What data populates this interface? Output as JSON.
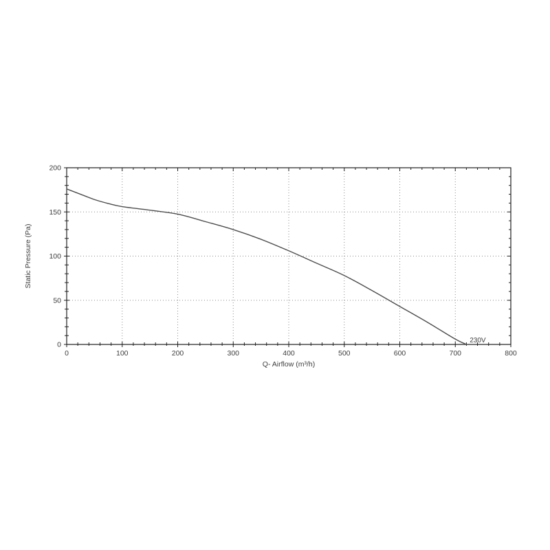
{
  "chart_data": {
    "type": "line",
    "title": "",
    "xlabel": "Q- Airflow (m³/h)",
    "ylabel": "Static Pressure (Pa)",
    "xlim": [
      0,
      800
    ],
    "ylim": [
      0,
      200
    ],
    "x_major_ticks": [
      0,
      100,
      200,
      300,
      400,
      500,
      600,
      700,
      800
    ],
    "y_major_ticks": [
      0,
      50,
      100,
      150,
      200
    ],
    "x_minor_step": 20,
    "y_minor_step": 10,
    "grid": "dotted-on-major-lines",
    "legend_position": "none",
    "series": [
      {
        "name": "230V",
        "points": [
          [
            0,
            176
          ],
          [
            25,
            170
          ],
          [
            50,
            164
          ],
          [
            75,
            159.5
          ],
          [
            100,
            156
          ],
          [
            150,
            152
          ],
          [
            200,
            147.5
          ],
          [
            250,
            139
          ],
          [
            300,
            130
          ],
          [
            350,
            119
          ],
          [
            400,
            106
          ],
          [
            450,
            92
          ],
          [
            500,
            78
          ],
          [
            550,
            61
          ],
          [
            600,
            43
          ],
          [
            650,
            25
          ],
          [
            700,
            6
          ],
          [
            720,
            0
          ]
        ]
      }
    ],
    "annotations": [
      {
        "text": "230V",
        "q": 726,
        "pa": 2.5
      }
    ]
  },
  "style": {
    "background": "#ffffff",
    "axis_color": "#1f1f1f",
    "grid_color": "#8a8a8a",
    "curve_color": "#4d4d4d",
    "label_color": "#3d3d3d"
  }
}
